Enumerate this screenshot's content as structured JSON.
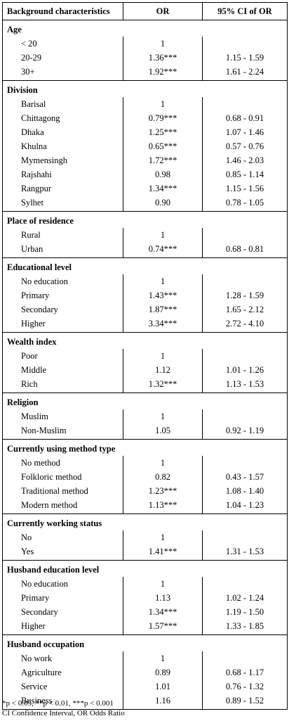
{
  "header": {
    "col1": "Background characteristics",
    "col2": "OR",
    "col3": "95% CI of OR"
  },
  "groups": [
    {
      "title": "Age",
      "rows": [
        {
          "label": "< 20",
          "or": "1",
          "ci": ""
        },
        {
          "label": "20-29",
          "or": "1.36***",
          "ci": "1.15 - 1.59"
        },
        {
          "label": "30+",
          "or": "1.92***",
          "ci": "1.61 - 2.24"
        }
      ]
    },
    {
      "title": "Division",
      "rows": [
        {
          "label": "Barisal",
          "or": "1",
          "ci": ""
        },
        {
          "label": "Chittagong",
          "or": "0.79***",
          "ci": "0.68 - 0.91"
        },
        {
          "label": "Dhaka",
          "or": "1.25***",
          "ci": "1.07 - 1.46"
        },
        {
          "label": "Khulna",
          "or": "0.65***",
          "ci": "0.57 - 0.76"
        },
        {
          "label": "Mymensingh",
          "or": "1.72***",
          "ci": "1.46 - 2.03"
        },
        {
          "label": "Rajshahi",
          "or": "0.98",
          "ci": "0.85 - 1.14"
        },
        {
          "label": "Rangpur",
          "or": "1.34***",
          "ci": "1.15 - 1.56"
        },
        {
          "label": "Sylhet",
          "or": "0.90",
          "ci": "0.78 - 1.05"
        }
      ]
    },
    {
      "title": "Place of residence",
      "rows": [
        {
          "label": "Rural",
          "or": "1",
          "ci": ""
        },
        {
          "label": "Urban",
          "or": "0.74***",
          "ci": "0.68 - 0.81"
        }
      ]
    },
    {
      "title": "Educational level",
      "rows": [
        {
          "label": "No education",
          "or": "1",
          "ci": ""
        },
        {
          "label": "Primary",
          "or": "1.43***",
          "ci": "1.28 - 1.59"
        },
        {
          "label": "Secondary",
          "or": "1.87***",
          "ci": "1.65 - 2.12"
        },
        {
          "label": "Higher",
          "or": "3.34***",
          "ci": "2.72 - 4.10"
        }
      ]
    },
    {
      "title": "Wealth index",
      "rows": [
        {
          "label": "Poor",
          "or": "1",
          "ci": ""
        },
        {
          "label": "Middle",
          "or": "1.12",
          "ci": "1.01 - 1.26"
        },
        {
          "label": "Rich",
          "or": "1.32***",
          "ci": "1.13 - 1.53"
        }
      ]
    },
    {
      "title": "Religion",
      "rows": [
        {
          "label": "Muslim",
          "or": "1",
          "ci": ""
        },
        {
          "label": "Non-Muslim",
          "or": "1.05",
          "ci": "0.92 - 1.19"
        }
      ]
    },
    {
      "title": "Currently using method type",
      "rows": [
        {
          "label": "No method",
          "or": "1",
          "ci": ""
        },
        {
          "label": "Folkloric method",
          "or": "0.82",
          "ci": "0.43 - 1.57"
        },
        {
          "label": "Traditional method",
          "or": "1.23***",
          "ci": "1.08 - 1.40"
        },
        {
          "label": "Modern method",
          "or": "1.13***",
          "ci": "1.04 - 1.23"
        }
      ]
    },
    {
      "title": "Currently working status",
      "rows": [
        {
          "label": "No",
          "or": "1",
          "ci": ""
        },
        {
          "label": "Yes",
          "or": "1.41***",
          "ci": "1.31 - 1.53"
        }
      ]
    },
    {
      "title": "Husband education level",
      "rows": [
        {
          "label": "No education",
          "or": "1",
          "ci": ""
        },
        {
          "label": "Primary",
          "or": "1.13",
          "ci": "1.02 - 1.24"
        },
        {
          "label": "Secondary",
          "or": "1.34***",
          "ci": "1.19 - 1.50"
        },
        {
          "label": "Higher",
          "or": "1.57***",
          "ci": "1.33 - 1.85"
        }
      ]
    },
    {
      "title": "Husband occupation",
      "rows": [
        {
          "label": "No work",
          "or": "1",
          "ci": ""
        },
        {
          "label": "Agriculture",
          "or": "0.89",
          "ci": "0.68 - 1.17"
        },
        {
          "label": "Service",
          "or": "1.01",
          "ci": "0.76 - 1.32"
        },
        {
          "label": "Business",
          "or": "1.16",
          "ci": "0.89 - 1.52"
        }
      ]
    }
  ],
  "footnotes": [
    "*p < 0.05, **p < 0.01, ***p < 0.001",
    "CI Confidence Interval, OR Odds Ratio"
  ]
}
